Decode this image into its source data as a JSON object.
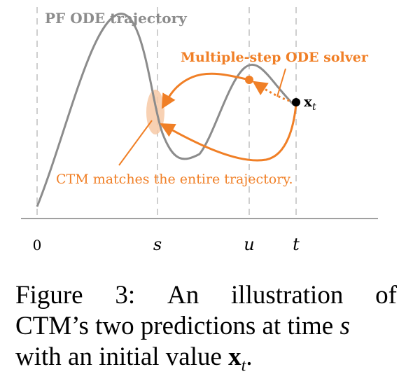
{
  "figure": {
    "trajectory_label": "PF ODE trajectory",
    "solver_label": "Multiple-step ODE solver",
    "ctm_label": "CTM matches the entire trajectory.",
    "point_label_main": "x",
    "point_label_sub": "t",
    "axis_ticks": {
      "zero": "0",
      "s": "s",
      "u": "u",
      "t": "t"
    },
    "colors": {
      "gray": "#8c8c8c",
      "orange": "#f07f26",
      "light_orange": "#f7c9a6",
      "axis": "#a0a0a0"
    }
  },
  "caption": {
    "line1": {
      "w1": "Figure",
      "w2": "3:",
      "w3": "An",
      "w4": "illustration",
      "w5": "of"
    },
    "line2_pre": "CTM’s two predictions at time ",
    "line2_var": "s",
    "line3_pre": "with an initial value ",
    "line3_var": "x",
    "line3_sub": "t",
    "line3_post": "."
  }
}
